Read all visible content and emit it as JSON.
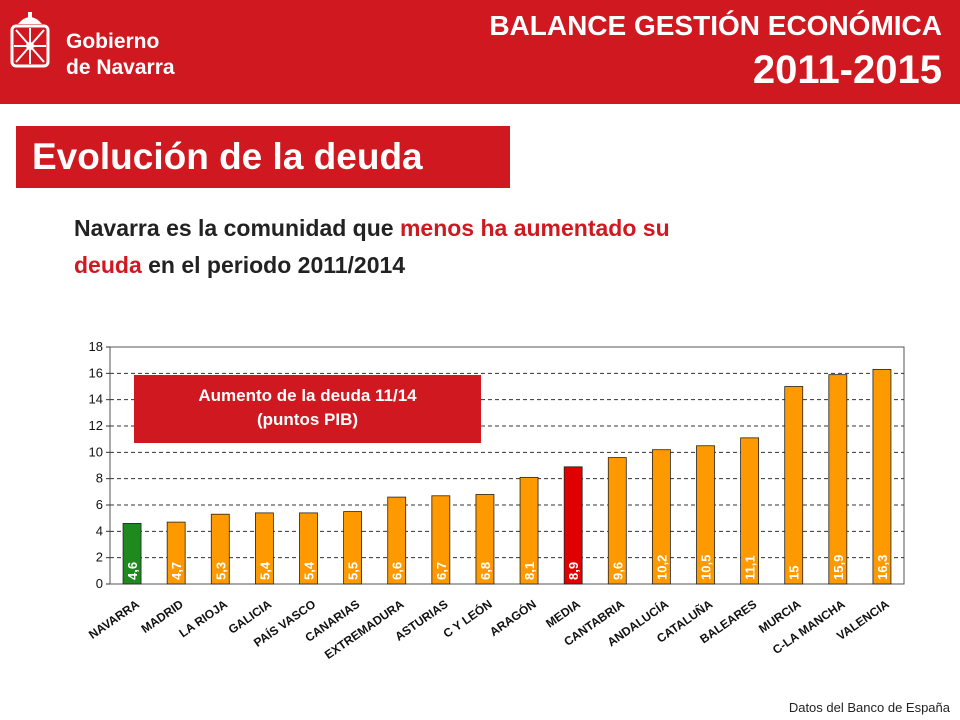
{
  "header": {
    "logo_line1": "Gobierno",
    "logo_line2": "de Navarra",
    "title": "BALANCE GESTIÓN ECONÓMICA",
    "years": "2011-2015"
  },
  "section_title": "Evolución de la deuda",
  "subtitle": {
    "part1": "Navarra es la comunidad que ",
    "highlight": "menos ha aumentado su deuda",
    "part2": " en el periodo 2011/2014"
  },
  "legend": {
    "line1": "Aumento de la deuda 11/14",
    "line2": "(puntos PIB)"
  },
  "source": "Datos del Banco de España",
  "colors": {
    "brand_red": "#d01820",
    "bar_orange": "#ff9900",
    "bar_green": "#1e8a1e",
    "bar_red": "#e00000"
  },
  "chart_data": {
    "type": "bar",
    "categories": [
      "NAVARRA",
      "MADRID",
      "LA RIOJA",
      "GALICIA",
      "PAÍS VASCO",
      "CANARIAS",
      "EXTREMADURA",
      "ASTURIAS",
      "C Y LEÓN",
      "ARAGÓN",
      "MEDIA",
      "CANTABRIA",
      "ANDALUCÍA",
      "CATALUÑA",
      "BALEARES",
      "MURCIA",
      "C-LA MANCHA",
      "VALENCIA"
    ],
    "values": [
      4.6,
      4.7,
      5.3,
      5.4,
      5.4,
      5.5,
      6.6,
      6.7,
      6.8,
      8.1,
      8.9,
      9.6,
      10.2,
      10.5,
      11.1,
      15,
      15.9,
      16.3
    ],
    "value_labels": [
      "4,6",
      "4,7",
      "5,3",
      "5,4",
      "5,4",
      "5,5",
      "6,6",
      "6,7",
      "6,8",
      "8,1",
      "8,9",
      "9,6",
      "10,2",
      "10,5",
      "11,1",
      "15",
      "15,9",
      "16,3"
    ],
    "bar_colors": [
      "#1e8a1e",
      "#ff9900",
      "#ff9900",
      "#ff9900",
      "#ff9900",
      "#ff9900",
      "#ff9900",
      "#ff9900",
      "#ff9900",
      "#ff9900",
      "#e00000",
      "#ff9900",
      "#ff9900",
      "#ff9900",
      "#ff9900",
      "#ff9900",
      "#ff9900",
      "#ff9900"
    ],
    "ylim": [
      0,
      18
    ],
    "yticks": [
      0,
      2,
      4,
      6,
      8,
      10,
      12,
      14,
      16,
      18
    ],
    "grid": "horizontal dashed",
    "title": "",
    "xlabel": "",
    "ylabel": ""
  }
}
